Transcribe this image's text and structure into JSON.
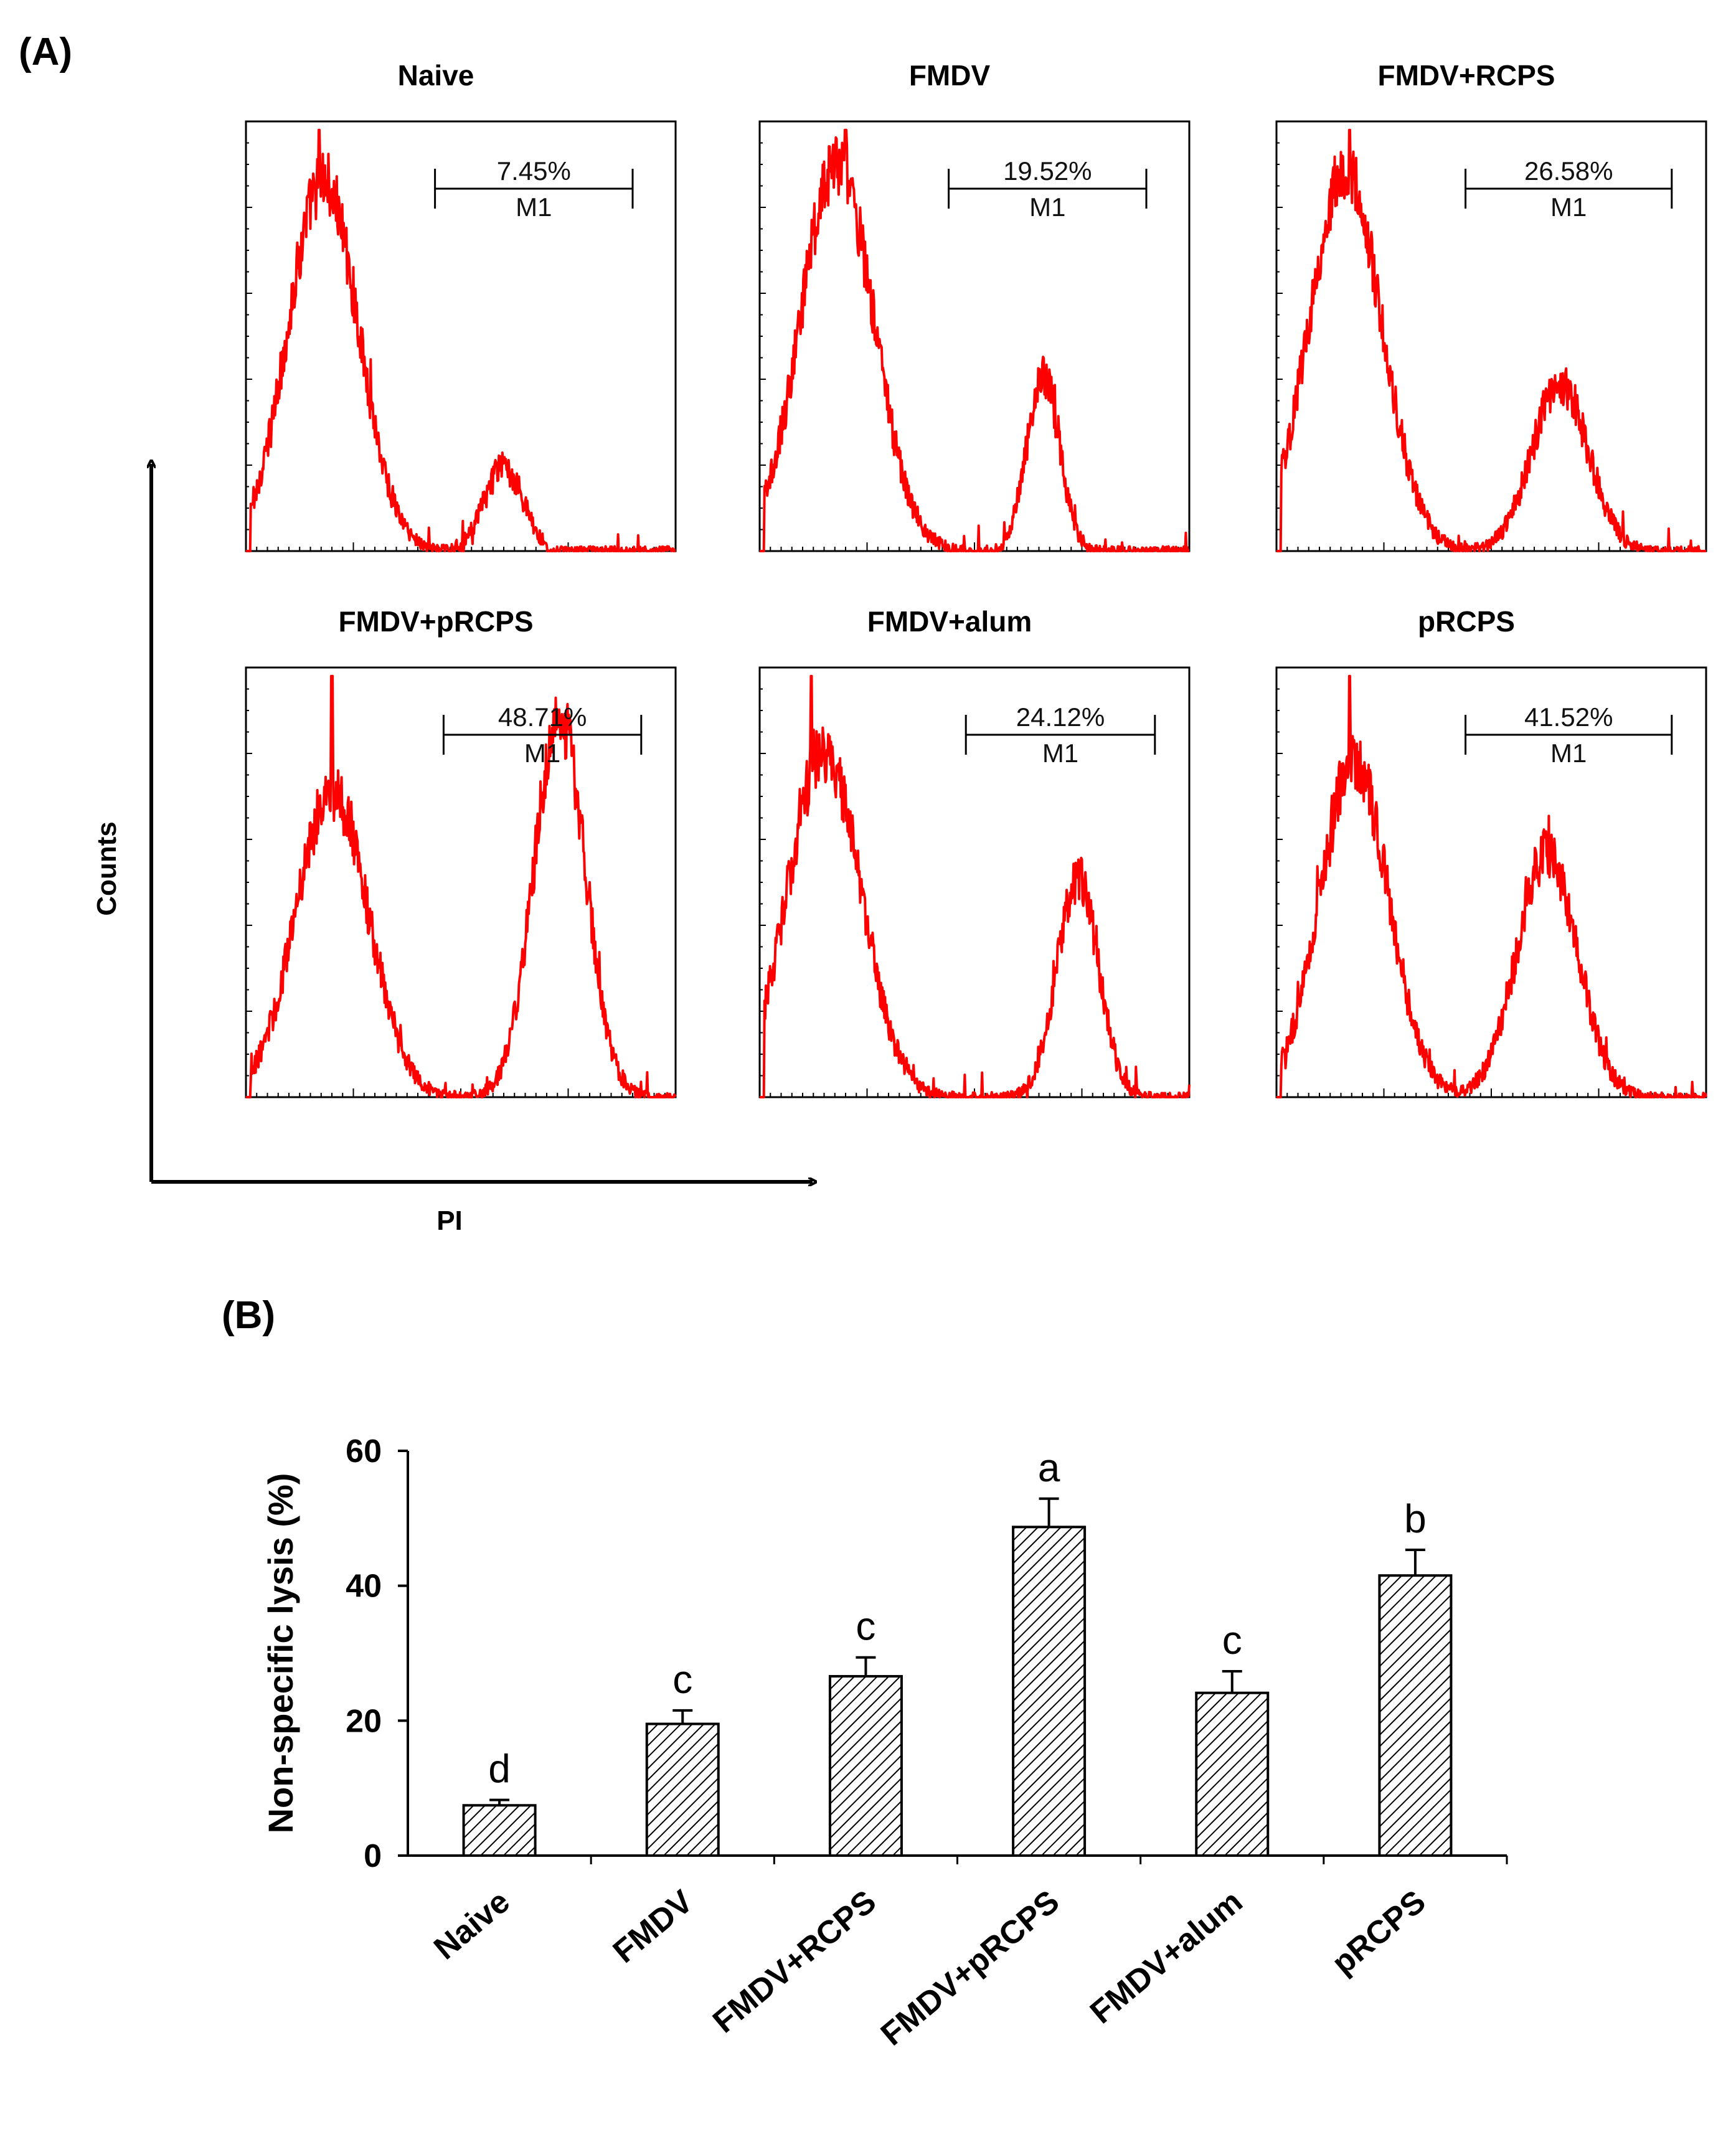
{
  "panel_labels": {
    "a": "(A)",
    "b": "(B)"
  },
  "chart_data": [
    {
      "type": "histogram",
      "panel": "(A)",
      "x_axis_label": "PI",
      "y_axis_label": "Counts",
      "line_color": "#ff0000",
      "gate_label": "M1",
      "histograms": [
        {
          "title": "Naive",
          "gate_percent": "7.45%",
          "value": 7.45
        },
        {
          "title": "FMDV",
          "gate_percent": "19.52%",
          "value": 19.52
        },
        {
          "title": "FMDV+RCPS",
          "gate_percent": "26.58%",
          "value": 26.58
        },
        {
          "title": "FMDV+pRCPS",
          "gate_percent": "48.71%",
          "value": 48.71
        },
        {
          "title": "FMDV+alum",
          "gate_percent": "24.12%",
          "value": 24.12
        },
        {
          "title": "pRCPS",
          "gate_percent": "41.52%",
          "value": 41.52
        }
      ]
    },
    {
      "type": "bar",
      "panel": "(B)",
      "ylabel": "Non-specific lysis (%)",
      "xlabel": "",
      "ylim": [
        0,
        60
      ],
      "yticks": [
        0,
        20,
        40,
        60
      ],
      "categories": [
        "Naive",
        "FMDV",
        "FMDV+RCPS",
        "FMDV+pRCPS",
        "FMDV+alum",
        "pRCPS"
      ],
      "values": [
        7.45,
        19.52,
        26.58,
        48.71,
        24.12,
        41.52
      ],
      "errors": [
        0.8,
        2.0,
        2.8,
        4.2,
        3.2,
        3.8
      ],
      "significance": [
        "d",
        "c",
        "c",
        "a",
        "c",
        "b"
      ],
      "bar_fill": "hatched"
    }
  ]
}
